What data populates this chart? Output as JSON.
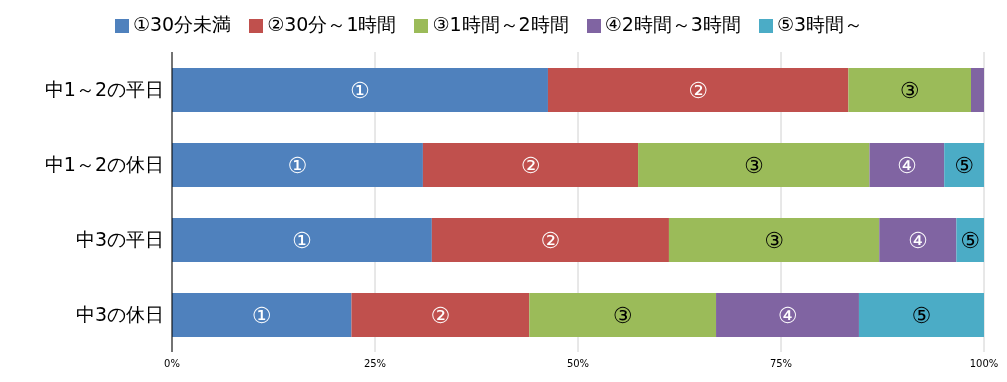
{
  "chart_data": {
    "type": "bar",
    "orientation": "horizontal",
    "stacked": true,
    "categories": [
      "中1～2の平日",
      "中1～2の休日",
      "中3の平日",
      "中3の休日"
    ],
    "series": [
      {
        "name": "①30分未満",
        "color": "#4f81bd",
        "values": [
          46.3,
          30.9,
          32.0,
          22.1
        ],
        "value_labels": [
          "①",
          "①",
          "①",
          "①"
        ]
      },
      {
        "name": "②30分～1時間",
        "color": "#c0504d",
        "values": [
          37.0,
          26.5,
          29.2,
          21.9
        ],
        "value_labels": [
          "②",
          "②",
          "②",
          "②"
        ]
      },
      {
        "name": "③1時間～2時間",
        "color": "#9bbb59",
        "values": [
          15.1,
          28.5,
          25.9,
          23.0
        ],
        "value_labels": [
          "③",
          "③",
          "③",
          "③"
        ]
      },
      {
        "name": "④2時間～3時間",
        "color": "#8064a2",
        "values": [
          1.6,
          9.2,
          9.5,
          17.6
        ],
        "value_labels": [
          null,
          "④",
          "④",
          "④"
        ]
      },
      {
        "name": "⑤3時間～",
        "color": "#4bacc6",
        "values": [
          0,
          4.9,
          3.4,
          15.4
        ],
        "value_labels": [
          null,
          "⑤",
          "⑤",
          "⑤"
        ]
      }
    ],
    "xlim": [
      0,
      100
    ],
    "xticks": [
      {
        "value": 0,
        "label": "0%"
      },
      {
        "value": 25,
        "label": "25%"
      },
      {
        "value": 50,
        "label": "50%"
      },
      {
        "value": 75,
        "label": "75%"
      },
      {
        "value": 100,
        "label": "100%"
      }
    ],
    "grid": "x",
    "legend": "top"
  }
}
